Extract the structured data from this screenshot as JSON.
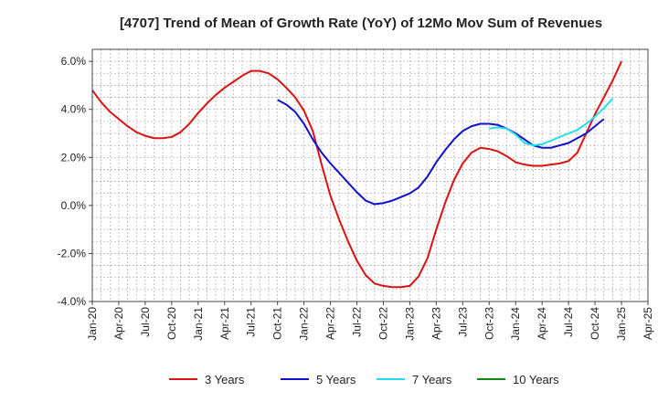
{
  "chart_data": {
    "type": "line",
    "title": "[4707]  Trend of Mean of Growth Rate (YoY) of 12Mo Mov Sum of Revenues",
    "xlabel": "",
    "ylabel": "",
    "ylim": [
      -4.0,
      6.5
    ],
    "y_ticks": [
      -4.0,
      -2.0,
      0.0,
      2.0,
      4.0,
      6.0
    ],
    "y_tick_labels": [
      "-4.0%",
      "-2.0%",
      "0.0%",
      "2.0%",
      "4.0%",
      "6.0%"
    ],
    "x_tick_labels": [
      "Jan-20",
      "Apr-20",
      "Jul-20",
      "Oct-20",
      "Jan-21",
      "Apr-21",
      "Jul-21",
      "Oct-21",
      "Jan-22",
      "Apr-22",
      "Jul-22",
      "Oct-22",
      "Jan-23",
      "Apr-23",
      "Jul-23",
      "Oct-23",
      "Jan-24",
      "Apr-24",
      "Jul-24",
      "Oct-24",
      "Jan-25",
      "Apr-25"
    ],
    "x_start": "2020-01",
    "x_count": 64,
    "grid": true,
    "legend_position": "bottom",
    "series": [
      {
        "name": "3 Years",
        "color": "#dd1111",
        "start_index": 0,
        "values": [
          4.8,
          4.3,
          3.9,
          3.6,
          3.3,
          3.05,
          2.9,
          2.8,
          2.8,
          2.85,
          3.05,
          3.4,
          3.85,
          4.25,
          4.6,
          4.9,
          5.15,
          5.4,
          5.6,
          5.6,
          5.5,
          5.25,
          4.9,
          4.5,
          3.95,
          3.1,
          1.7,
          0.4,
          -0.6,
          -1.5,
          -2.3,
          -2.9,
          -3.25,
          -3.35,
          -3.4,
          -3.4,
          -3.35,
          -2.95,
          -2.2,
          -1.0,
          0.1,
          1.05,
          1.75,
          2.2,
          2.4,
          2.35,
          2.25,
          2.05,
          1.8,
          1.7,
          1.65,
          1.65,
          1.7,
          1.75,
          1.85,
          2.2,
          3.0,
          3.8,
          4.5,
          5.2,
          6.0
        ]
      },
      {
        "name": "5 Years",
        "color": "#1111cc",
        "start_index": 21,
        "values": [
          4.4,
          4.2,
          3.9,
          3.4,
          2.75,
          2.2,
          1.75,
          1.35,
          0.95,
          0.55,
          0.2,
          0.05,
          0.1,
          0.2,
          0.35,
          0.5,
          0.75,
          1.2,
          1.8,
          2.3,
          2.75,
          3.1,
          3.3,
          3.4,
          3.4,
          3.35,
          3.2,
          3.0,
          2.75,
          2.5,
          2.4,
          2.4,
          2.5,
          2.6,
          2.8,
          3.0,
          3.3,
          3.6
        ]
      },
      {
        "name": "7 Years",
        "color": "#22ddee",
        "start_index": 45,
        "values": [
          3.2,
          3.25,
          3.2,
          2.95,
          2.6,
          2.5,
          2.55,
          2.7,
          2.85,
          3.0,
          3.15,
          3.4,
          3.7,
          4.05,
          4.45
        ]
      },
      {
        "name": "10 Years",
        "color": "#118811",
        "start_index": 0,
        "values": []
      }
    ]
  }
}
